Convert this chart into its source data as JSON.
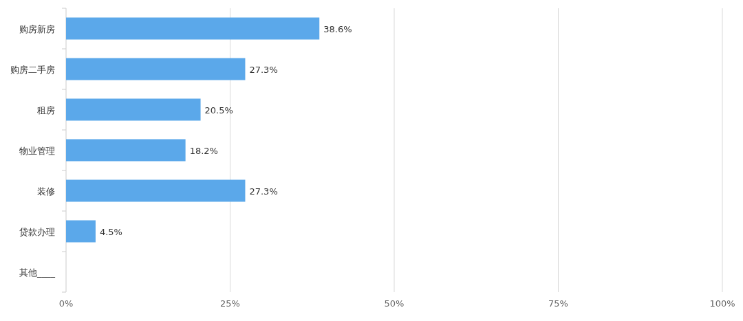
{
  "chart_data": {
    "type": "bar",
    "orientation": "horizontal",
    "categories": [
      "购房新房",
      "购房二手房",
      "租房",
      "物业管理",
      "装修",
      "贷款办理",
      "其他____"
    ],
    "values": [
      38.6,
      27.3,
      20.5,
      18.2,
      27.3,
      4.5,
      0
    ],
    "value_labels": [
      "38.6%",
      "27.3%",
      "20.5%",
      "18.2%",
      "27.3%",
      "4.5%",
      null
    ],
    "color": "#5ba8ea",
    "xlim": [
      0,
      100
    ],
    "xticks": [
      {
        "value": 0,
        "label": "0%"
      },
      {
        "value": 25,
        "label": "25%"
      },
      {
        "value": 50,
        "label": "50%"
      },
      {
        "value": 75,
        "label": "75%"
      },
      {
        "value": 100,
        "label": "100%"
      }
    ],
    "grid": "x"
  }
}
